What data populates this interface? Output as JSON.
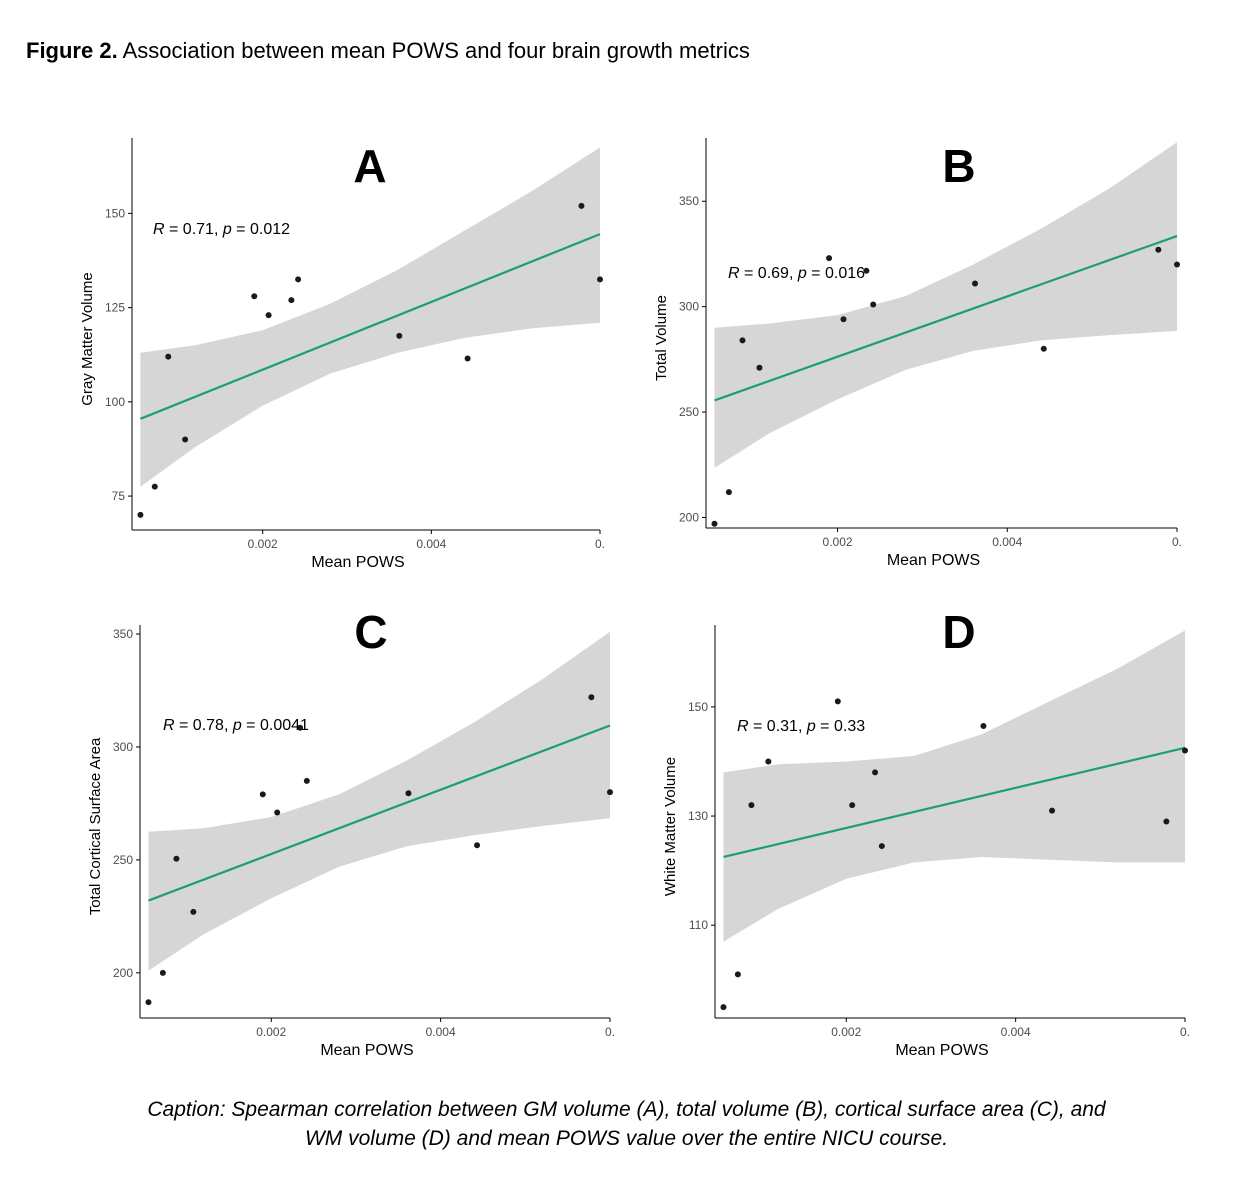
{
  "figure": {
    "label": "Figure 2.",
    "title": "Association between mean POWS and four brain growth metrics"
  },
  "caption": {
    "text": "Caption: Spearman correlation between GM volume (A), total volume (B), cortical surface area (C), and WM volume (D) and mean POWS value over the entire NICU course."
  },
  "colors": {
    "fit_line": "#1b9e77",
    "confidence_band": "#d6d6d6",
    "points": "#1a1a1a",
    "axis": "#000000",
    "tick_label": "#4d4d4d"
  },
  "chart_data": [
    {
      "panel": "A",
      "type": "scatter",
      "xlabel": "Mean POWS",
      "ylabel": "Gray Matter Volume",
      "annotation": {
        "r_label": "R",
        "r": "0.71",
        "p_label": "p",
        "p": "0.012"
      },
      "xlim": [
        0.00045,
        0.006
      ],
      "ylim": [
        66,
        170
      ],
      "x_ticks": [
        {
          "value": 0.002,
          "label": "0.002"
        },
        {
          "value": 0.004,
          "label": "0.004"
        },
        {
          "value": 0.006,
          "label": "0."
        }
      ],
      "y_ticks": [
        {
          "value": 75,
          "label": "75"
        },
        {
          "value": 100,
          "label": "100"
        },
        {
          "value": 125,
          "label": "125"
        },
        {
          "value": 150,
          "label": "150"
        }
      ],
      "points": [
        {
          "x": 0.00055,
          "y": 70
        },
        {
          "x": 0.00072,
          "y": 77.5
        },
        {
          "x": 0.00088,
          "y": 112
        },
        {
          "x": 0.00108,
          "y": 90
        },
        {
          "x": 0.0019,
          "y": 128
        },
        {
          "x": 0.00207,
          "y": 123
        },
        {
          "x": 0.00234,
          "y": 127
        },
        {
          "x": 0.00242,
          "y": 132.5
        },
        {
          "x": 0.00362,
          "y": 117.5
        },
        {
          "x": 0.00443,
          "y": 111.5
        },
        {
          "x": 0.00578,
          "y": 152
        },
        {
          "x": 0.006,
          "y": 132.5
        }
      ],
      "fit": {
        "x_start": 0.00055,
        "y_start": 95.5,
        "x_end": 0.006,
        "y_end": 144.5
      },
      "band": [
        {
          "x": 0.00055,
          "lo": 77.5,
          "hi": 113
        },
        {
          "x": 0.0012,
          "lo": 88,
          "hi": 115
        },
        {
          "x": 0.002,
          "lo": 99,
          "hi": 119
        },
        {
          "x": 0.0028,
          "lo": 107.5,
          "hi": 126
        },
        {
          "x": 0.0036,
          "lo": 113,
          "hi": 135
        },
        {
          "x": 0.0044,
          "lo": 117,
          "hi": 145.5
        },
        {
          "x": 0.0052,
          "lo": 119.5,
          "hi": 156
        },
        {
          "x": 0.006,
          "lo": 121,
          "hi": 167.5
        }
      ]
    },
    {
      "panel": "B",
      "type": "scatter",
      "xlabel": "Mean POWS",
      "ylabel": "Total Volume",
      "annotation": {
        "r_label": "R",
        "r": "0.69",
        "p_label": "p",
        "p": "0.016"
      },
      "xlim": [
        0.00045,
        0.006
      ],
      "ylim": [
        195,
        380
      ],
      "x_ticks": [
        {
          "value": 0.002,
          "label": "0.002"
        },
        {
          "value": 0.004,
          "label": "0.004"
        },
        {
          "value": 0.006,
          "label": "0."
        }
      ],
      "y_ticks": [
        {
          "value": 200,
          "label": "200"
        },
        {
          "value": 250,
          "label": "250"
        },
        {
          "value": 300,
          "label": "300"
        },
        {
          "value": 350,
          "label": "350"
        }
      ],
      "points": [
        {
          "x": 0.00055,
          "y": 197
        },
        {
          "x": 0.00072,
          "y": 212
        },
        {
          "x": 0.00088,
          "y": 284
        },
        {
          "x": 0.00108,
          "y": 271
        },
        {
          "x": 0.0019,
          "y": 323
        },
        {
          "x": 0.00207,
          "y": 294
        },
        {
          "x": 0.00234,
          "y": 317
        },
        {
          "x": 0.00242,
          "y": 301
        },
        {
          "x": 0.00362,
          "y": 311
        },
        {
          "x": 0.00443,
          "y": 280
        },
        {
          "x": 0.00578,
          "y": 327
        },
        {
          "x": 0.006,
          "y": 320
        }
      ],
      "fit": {
        "x_start": 0.00055,
        "y_start": 255.5,
        "x_end": 0.006,
        "y_end": 333.5
      },
      "band": [
        {
          "x": 0.00055,
          "lo": 223.5,
          "hi": 290
        },
        {
          "x": 0.0012,
          "lo": 240,
          "hi": 292
        },
        {
          "x": 0.002,
          "lo": 256,
          "hi": 296
        },
        {
          "x": 0.0028,
          "lo": 270,
          "hi": 305
        },
        {
          "x": 0.0036,
          "lo": 279,
          "hi": 320
        },
        {
          "x": 0.0044,
          "lo": 284,
          "hi": 337
        },
        {
          "x": 0.0052,
          "lo": 286.5,
          "hi": 356
        },
        {
          "x": 0.006,
          "lo": 288.5,
          "hi": 378
        }
      ]
    },
    {
      "panel": "C",
      "type": "scatter",
      "xlabel": "Mean POWS",
      "ylabel": "Total Cortical Surface Area",
      "annotation": {
        "r_label": "R",
        "r": "0.78",
        "p_label": "p",
        "p": "0.0041"
      },
      "xlim": [
        0.00045,
        0.006
      ],
      "ylim": [
        180,
        354
      ],
      "x_ticks": [
        {
          "value": 0.002,
          "label": "0.002"
        },
        {
          "value": 0.004,
          "label": "0.004"
        },
        {
          "value": 0.006,
          "label": "0."
        }
      ],
      "y_ticks": [
        {
          "value": 200,
          "label": "200"
        },
        {
          "value": 250,
          "label": "250"
        },
        {
          "value": 300,
          "label": "300"
        },
        {
          "value": 350,
          "label": "350"
        }
      ],
      "points": [
        {
          "x": 0.00055,
          "y": 187
        },
        {
          "x": 0.00072,
          "y": 200
        },
        {
          "x": 0.00088,
          "y": 250.5
        },
        {
          "x": 0.00108,
          "y": 227
        },
        {
          "x": 0.0019,
          "y": 279
        },
        {
          "x": 0.00207,
          "y": 271
        },
        {
          "x": 0.00234,
          "y": 308.5
        },
        {
          "x": 0.00242,
          "y": 285
        },
        {
          "x": 0.00362,
          "y": 279.5
        },
        {
          "x": 0.00443,
          "y": 256.5
        },
        {
          "x": 0.00578,
          "y": 322
        },
        {
          "x": 0.006,
          "y": 280
        }
      ],
      "fit": {
        "x_start": 0.00055,
        "y_start": 232,
        "x_end": 0.006,
        "y_end": 309.5
      },
      "band": [
        {
          "x": 0.00055,
          "lo": 201,
          "hi": 262.5
        },
        {
          "x": 0.0012,
          "lo": 217,
          "hi": 264
        },
        {
          "x": 0.002,
          "lo": 233,
          "hi": 269
        },
        {
          "x": 0.0028,
          "lo": 247,
          "hi": 279
        },
        {
          "x": 0.0036,
          "lo": 256,
          "hi": 294
        },
        {
          "x": 0.0044,
          "lo": 261,
          "hi": 311
        },
        {
          "x": 0.0052,
          "lo": 265,
          "hi": 330
        },
        {
          "x": 0.006,
          "lo": 268.5,
          "hi": 351
        }
      ]
    },
    {
      "panel": "D",
      "type": "scatter",
      "xlabel": "Mean POWS",
      "ylabel": "White Matter Volume",
      "annotation": {
        "r_label": "R",
        "r": "0.31",
        "p_label": "p",
        "p": "0.33"
      },
      "xlim": [
        0.00045,
        0.006
      ],
      "ylim": [
        93,
        165
      ],
      "x_ticks": [
        {
          "value": 0.002,
          "label": "0.002"
        },
        {
          "value": 0.004,
          "label": "0.004"
        },
        {
          "value": 0.006,
          "label": "0."
        }
      ],
      "y_ticks": [
        {
          "value": 110,
          "label": "110"
        },
        {
          "value": 130,
          "label": "130"
        },
        {
          "value": 150,
          "label": "150"
        }
      ],
      "points": [
        {
          "x": 0.00055,
          "y": 95
        },
        {
          "x": 0.00072,
          "y": 101
        },
        {
          "x": 0.00088,
          "y": 132
        },
        {
          "x": 0.00108,
          "y": 140
        },
        {
          "x": 0.0019,
          "y": 151
        },
        {
          "x": 0.00207,
          "y": 132
        },
        {
          "x": 0.00234,
          "y": 138
        },
        {
          "x": 0.00242,
          "y": 124.5
        },
        {
          "x": 0.00362,
          "y": 146.5
        },
        {
          "x": 0.00443,
          "y": 131
        },
        {
          "x": 0.00578,
          "y": 129
        },
        {
          "x": 0.006,
          "y": 142
        }
      ],
      "fit": {
        "x_start": 0.00055,
        "y_start": 122.5,
        "x_end": 0.006,
        "y_end": 142.5
      },
      "band": [
        {
          "x": 0.00055,
          "lo": 107,
          "hi": 138
        },
        {
          "x": 0.0012,
          "lo": 113,
          "hi": 139.5
        },
        {
          "x": 0.002,
          "lo": 118.5,
          "hi": 140
        },
        {
          "x": 0.0028,
          "lo": 121.5,
          "hi": 141
        },
        {
          "x": 0.0036,
          "lo": 122.5,
          "hi": 145
        },
        {
          "x": 0.0044,
          "lo": 122,
          "hi": 151
        },
        {
          "x": 0.0052,
          "lo": 121.5,
          "hi": 157
        },
        {
          "x": 0.006,
          "lo": 121.5,
          "hi": 164
        }
      ]
    }
  ]
}
